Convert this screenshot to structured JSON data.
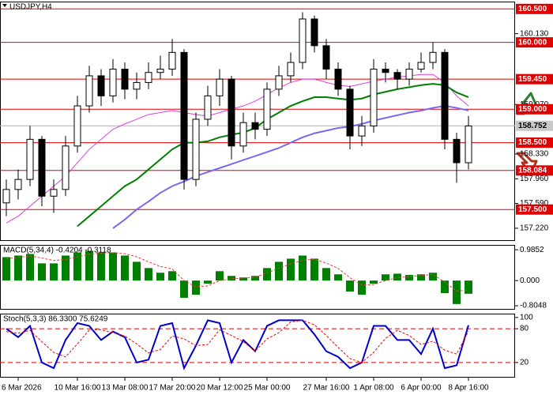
{
  "chart_data": [
    {
      "type": "candlestick",
      "title": "USDJPY,H4",
      "categories": [
        null,
        "6 Mar 2026",
        null,
        null,
        null,
        null,
        "10 Mar 16:00",
        null,
        null,
        null,
        "13 Mar 08:00",
        null,
        null,
        null,
        "17 Mar 20:00",
        null,
        null,
        null,
        "20 Mar 12:00",
        null,
        null,
        null,
        "25 Mar 00:00",
        null,
        null,
        null,
        null,
        "27 Mar 16:00",
        null,
        null,
        null,
        "1 Apr 08:00",
        null,
        null,
        null,
        "6 Apr 00:00",
        null,
        null,
        null,
        "8 Apr 16:00"
      ],
      "open": [
        157.6,
        157.8,
        157.95,
        158.55,
        157.7,
        157.8,
        158.45,
        159.05,
        159.5,
        159.2,
        159.6,
        159.3,
        159.4,
        159.55,
        159.6,
        159.85,
        157.95,
        158.85,
        159.2,
        159.45,
        158.45,
        158.8,
        158.7,
        159.3,
        159.5,
        159.7,
        160.35,
        159.95,
        159.6,
        159.3,
        158.6,
        158.75,
        159.6,
        159.55,
        159.45,
        159.6,
        159.7,
        159.85,
        158.55,
        158.2
      ],
      "high": [
        157.95,
        158.1,
        158.75,
        158.6,
        157.95,
        158.6,
        159.2,
        159.65,
        159.6,
        159.75,
        159.7,
        159.55,
        159.7,
        159.8,
        160.05,
        159.9,
        158.95,
        159.35,
        159.6,
        159.5,
        158.95,
        158.95,
        159.4,
        159.65,
        159.85,
        160.45,
        160.4,
        160.05,
        159.7,
        159.35,
        158.9,
        159.75,
        159.7,
        159.6,
        159.7,
        159.85,
        160.0,
        159.9,
        158.65,
        158.9
      ],
      "low": [
        157.4,
        157.65,
        157.85,
        157.55,
        157.45,
        157.7,
        158.35,
        158.95,
        159.05,
        159.1,
        159.15,
        159.15,
        159.3,
        159.45,
        159.5,
        157.8,
        157.85,
        158.75,
        159.05,
        158.25,
        158.35,
        158.55,
        158.6,
        159.2,
        159.4,
        159.6,
        159.85,
        159.45,
        159.2,
        158.4,
        158.45,
        158.65,
        159.4,
        159.3,
        159.35,
        159.55,
        159.6,
        158.4,
        157.9,
        158.1
      ],
      "close": [
        157.8,
        157.95,
        158.55,
        157.7,
        157.8,
        158.45,
        159.05,
        159.5,
        159.2,
        159.6,
        159.3,
        159.4,
        159.55,
        159.6,
        159.85,
        157.95,
        158.85,
        159.2,
        159.45,
        158.45,
        158.8,
        158.7,
        159.3,
        159.5,
        159.7,
        160.35,
        159.95,
        159.6,
        159.3,
        158.6,
        158.75,
        159.6,
        159.55,
        159.45,
        159.6,
        159.7,
        159.85,
        158.55,
        158.2,
        158.75
      ],
      "up_color": "#ffffff",
      "down_color": "#000000",
      "series": [
        {
          "color": "#e040e0",
          "values": [
            157.3,
            157.4,
            157.55,
            157.7,
            157.85,
            158.0,
            158.2,
            158.4,
            158.55,
            158.7,
            158.78,
            158.85,
            158.92,
            158.95,
            158.98,
            158.95,
            158.92,
            158.9,
            158.95,
            159.0,
            159.05,
            159.12,
            159.22,
            159.32,
            159.4,
            159.45,
            159.45,
            159.4,
            159.36,
            159.34,
            159.38,
            159.42,
            159.45,
            159.48,
            159.5,
            159.52,
            159.52,
            159.4,
            159.2,
            159.05
          ]
        },
        {
          "color": "#008000",
          "values": [
            null,
            null,
            null,
            null,
            null,
            null,
            157.25,
            157.4,
            157.55,
            157.7,
            157.85,
            157.95,
            158.1,
            158.25,
            158.4,
            158.5,
            158.5,
            158.52,
            158.58,
            158.62,
            158.65,
            158.72,
            158.85,
            158.95,
            159.05,
            159.12,
            159.18,
            159.18,
            159.16,
            159.14,
            159.16,
            159.22,
            159.26,
            159.3,
            159.33,
            159.36,
            159.38,
            159.36,
            159.25,
            159.18
          ]
        },
        {
          "color": "#7b68ee",
          "values": [
            null,
            null,
            null,
            null,
            null,
            null,
            null,
            null,
            null,
            157.22,
            157.35,
            157.5,
            157.62,
            157.75,
            157.85,
            157.92,
            158.0,
            158.06,
            158.12,
            158.18,
            158.24,
            158.3,
            158.36,
            158.42,
            158.5,
            158.58,
            158.64,
            158.68,
            158.72,
            158.74,
            158.78,
            158.83,
            158.87,
            158.91,
            158.95,
            158.98,
            159.02,
            159.05,
            159.02,
            158.98
          ]
        }
      ],
      "ylim": [
        157.03,
        160.61
      ],
      "yticks": [
        {
          "value": 160.13,
          "label": "160.130"
        },
        {
          "value": 159.07,
          "label": "159.070"
        },
        {
          "value": 158.33,
          "label": "158.330"
        },
        {
          "value": 157.96,
          "label": "157.960"
        },
        {
          "value": 157.59,
          "label": "157.590"
        },
        {
          "value": 157.22,
          "label": "157.220"
        }
      ],
      "levels": [
        {
          "value": 160.5,
          "label": "160.500"
        },
        {
          "value": 160.0,
          "label": "160.000"
        },
        {
          "value": 159.45,
          "label": "159.450"
        },
        {
          "value": 159.0,
          "label": "159.000"
        },
        {
          "value": 158.5,
          "label": "158.500"
        },
        {
          "value": 158.084,
          "label": "158.084"
        },
        {
          "value": 157.5,
          "label": "157.500"
        }
      ],
      "level_color": "#e00000",
      "last_price": {
        "value": 158.752,
        "label": "158.752"
      }
    },
    {
      "type": "bar",
      "title": "MACD(5,34,4) -0.4204 -0.3118",
      "color": "#008000",
      "values": [
        0.75,
        0.8,
        0.85,
        0.55,
        0.55,
        0.8,
        0.9,
        0.95,
        0.9,
        0.9,
        0.8,
        0.6,
        0.4,
        0.25,
        0.3,
        -0.55,
        -0.45,
        -0.1,
        0.3,
        0.15,
        0.1,
        0.15,
        0.4,
        0.6,
        0.7,
        0.8,
        0.7,
        0.4,
        0.2,
        -0.35,
        -0.45,
        -0.1,
        0.2,
        0.22,
        0.18,
        0.2,
        0.25,
        -0.4,
        -0.75,
        -0.4204
      ],
      "series": [
        {
          "color": "#e04040",
          "values": [
            0.7,
            0.74,
            0.79,
            0.72,
            0.64,
            0.68,
            0.76,
            0.84,
            0.88,
            0.89,
            0.86,
            0.76,
            0.6,
            0.45,
            0.37,
            0.0,
            -0.2,
            -0.17,
            0.0,
            0.06,
            0.08,
            0.11,
            0.24,
            0.4,
            0.53,
            0.65,
            0.68,
            0.56,
            0.39,
            0.09,
            -0.14,
            -0.13,
            0.0,
            0.09,
            0.13,
            0.16,
            0.2,
            -0.05,
            -0.33,
            -0.3118
          ]
        }
      ],
      "ylim": [
        -0.93,
        1.14
      ],
      "yticks": [
        0.9852,
        {
          "value": 0,
          "label": "0.000"
        },
        -0.8048
      ]
    },
    {
      "type": "line",
      "title": "Stoch(5,3,3) 86.3300 75.6249",
      "series": [
        {
          "color": "#0000cc",
          "values": [
            80,
            65,
            85,
            20,
            10,
            60,
            90,
            85,
            60,
            75,
            65,
            20,
            25,
            85,
            90,
            10,
            50,
            95,
            90,
            20,
            60,
            40,
            85,
            95,
            95,
            95,
            70,
            40,
            30,
            10,
            20,
            85,
            85,
            60,
            60,
            35,
            80,
            10,
            15,
            86.33
          ]
        },
        {
          "color": "#ff0000",
          "dashed": true,
          "values": [
            75,
            72,
            77,
            57,
            38,
            30,
            53,
            78,
            78,
            73,
            67,
            53,
            37,
            43,
            67,
            62,
            50,
            52,
            78,
            68,
            57,
            40,
            62,
            73,
            92,
            95,
            87,
            68,
            47,
            27,
            20,
            38,
            63,
            77,
            68,
            52,
            58,
            42,
            35,
            75.6249
          ]
        }
      ],
      "levels": [
        80,
        20
      ],
      "level_color": "#e00000",
      "ylim": [
        -6.8,
        106.8
      ],
      "yticks": [
        100,
        80,
        20
      ]
    }
  ]
}
